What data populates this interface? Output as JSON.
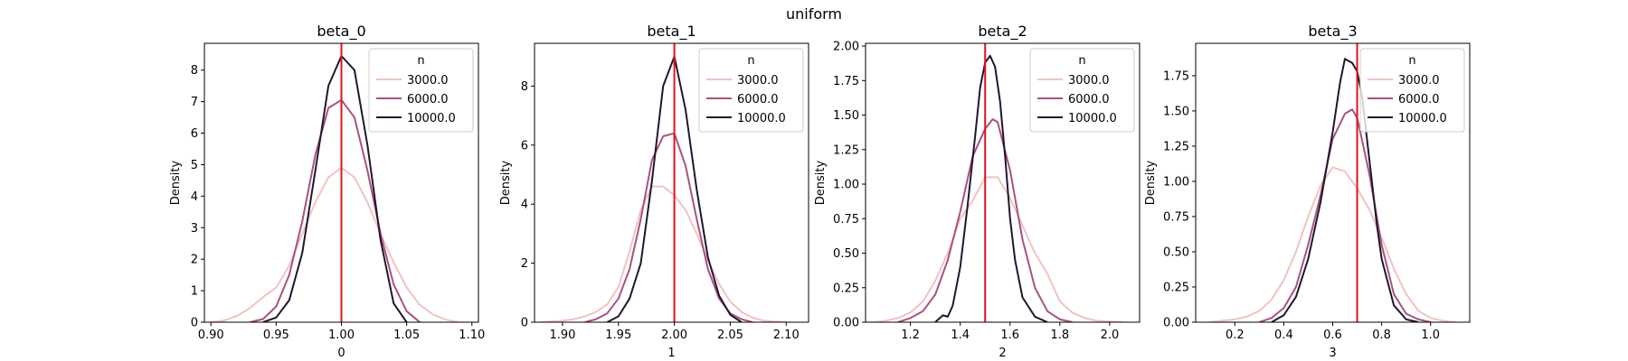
{
  "figure": {
    "suptitle": "uniform"
  },
  "chart_data": [
    {
      "type": "line",
      "title": "beta_0",
      "xlabel": "0",
      "ylabel": "Density",
      "xlim": [
        0.895,
        1.105
      ],
      "ylim": [
        0,
        8.85
      ],
      "xticks": [
        0.9,
        0.95,
        1.0,
        1.05,
        1.1
      ],
      "xtick_labels": [
        "0.90",
        "0.95",
        "1.00",
        "1.05",
        "1.10"
      ],
      "yticks": [
        0,
        1,
        2,
        3,
        4,
        5,
        6,
        7,
        8
      ],
      "ytick_labels": [
        "0",
        "1",
        "2",
        "3",
        "4",
        "5",
        "6",
        "7",
        "8"
      ],
      "true_value": 1.0,
      "legend": {
        "title": "n",
        "position": "upper right"
      },
      "series": [
        {
          "name": "3000.0",
          "color": "#f0c3c0",
          "x": [
            0.9,
            0.91,
            0.92,
            0.93,
            0.94,
            0.95,
            0.96,
            0.97,
            0.98,
            0.99,
            1.0,
            1.01,
            1.02,
            1.03,
            1.04,
            1.05,
            1.06,
            1.07,
            1.08,
            1.09
          ],
          "y": [
            0.0,
            0.05,
            0.2,
            0.45,
            0.8,
            1.1,
            1.8,
            2.8,
            3.8,
            4.6,
            4.9,
            4.6,
            3.8,
            2.8,
            1.9,
            1.1,
            0.55,
            0.25,
            0.08,
            0.0
          ]
        },
        {
          "name": "6000.0",
          "color": "#a8527f",
          "x": [
            0.93,
            0.94,
            0.95,
            0.96,
            0.97,
            0.98,
            0.99,
            1.0,
            1.01,
            1.02,
            1.03,
            1.04,
            1.05,
            1.06
          ],
          "y": [
            0.0,
            0.1,
            0.5,
            1.5,
            3.2,
            5.3,
            6.8,
            7.05,
            6.5,
            4.8,
            2.8,
            1.2,
            0.35,
            0.0
          ]
        },
        {
          "name": "10000.0",
          "color": "#22162e",
          "x": [
            0.94,
            0.95,
            0.96,
            0.97,
            0.98,
            0.99,
            1.0,
            1.01,
            1.02,
            1.03,
            1.04,
            1.05
          ],
          "y": [
            0.0,
            0.15,
            0.7,
            2.2,
            4.8,
            7.5,
            8.45,
            8.0,
            5.6,
            2.6,
            0.6,
            0.0
          ]
        }
      ]
    },
    {
      "type": "line",
      "title": "beta_1",
      "xlabel": "1",
      "ylabel": "Density",
      "xlim": [
        1.875,
        2.12
      ],
      "ylim": [
        0,
        9.45
      ],
      "xticks": [
        1.9,
        1.95,
        2.0,
        2.05,
        2.1
      ],
      "xtick_labels": [
        "1.90",
        "1.95",
        "2.00",
        "2.05",
        "2.10"
      ],
      "yticks": [
        0,
        2,
        4,
        6,
        8
      ],
      "ytick_labels": [
        "0",
        "2",
        "4",
        "6",
        "8"
      ],
      "true_value": 2.0,
      "legend": {
        "title": "n",
        "position": "upper right"
      },
      "series": [
        {
          "name": "3000.0",
          "color": "#f0c3c0",
          "x": [
            1.88,
            1.89,
            1.9,
            1.91,
            1.92,
            1.93,
            1.94,
            1.95,
            1.96,
            1.97,
            1.98,
            1.99,
            2.0,
            2.01,
            2.02,
            2.03,
            2.04,
            2.05,
            2.06,
            2.07,
            2.08,
            2.09,
            2.1
          ],
          "y": [
            0.0,
            0.02,
            0.05,
            0.1,
            0.2,
            0.35,
            0.6,
            1.2,
            2.4,
            3.8,
            4.6,
            4.6,
            4.3,
            3.8,
            3.0,
            2.1,
            1.3,
            0.7,
            0.35,
            0.15,
            0.05,
            0.02,
            0.0
          ]
        },
        {
          "name": "6000.0",
          "color": "#a8527f",
          "x": [
            1.92,
            1.93,
            1.94,
            1.95,
            1.96,
            1.97,
            1.98,
            1.99,
            2.0,
            2.01,
            2.02,
            2.03,
            2.04,
            2.05,
            2.06,
            2.07
          ],
          "y": [
            0.0,
            0.1,
            0.3,
            0.8,
            1.8,
            3.5,
            5.5,
            6.3,
            6.4,
            5.3,
            3.5,
            1.8,
            0.8,
            0.3,
            0.1,
            0.0
          ]
        },
        {
          "name": "10000.0",
          "color": "#22162e",
          "x": [
            1.94,
            1.95,
            1.96,
            1.97,
            1.98,
            1.99,
            2.0,
            2.01,
            2.02,
            2.03,
            2.04,
            2.05,
            2.06
          ],
          "y": [
            0.0,
            0.2,
            0.8,
            2.0,
            4.8,
            8.0,
            9.0,
            7.2,
            4.5,
            2.2,
            0.9,
            0.25,
            0.0
          ]
        }
      ]
    },
    {
      "type": "line",
      "title": "beta_2",
      "xlabel": "2",
      "ylabel": "Density",
      "xlim": [
        1.02,
        2.12
      ],
      "ylim": [
        0,
        2.02
      ],
      "xticks": [
        1.2,
        1.4,
        1.6,
        1.8,
        2.0
      ],
      "xtick_labels": [
        "1.2",
        "1.4",
        "1.6",
        "1.8",
        "2.0"
      ],
      "yticks": [
        0.0,
        0.25,
        0.5,
        0.75,
        1.0,
        1.25,
        1.5,
        1.75,
        2.0
      ],
      "ytick_labels": [
        "0.00",
        "0.25",
        "0.50",
        "0.75",
        "1.00",
        "1.25",
        "1.50",
        "1.75",
        "2.00"
      ],
      "true_value": 1.5,
      "legend": {
        "title": "n",
        "position": "upper right"
      },
      "series": [
        {
          "name": "3000.0",
          "color": "#f0c3c0",
          "x": [
            1.05,
            1.1,
            1.15,
            1.2,
            1.25,
            1.3,
            1.35,
            1.4,
            1.45,
            1.5,
            1.55,
            1.6,
            1.65,
            1.7,
            1.75,
            1.8,
            1.85,
            1.9,
            1.95,
            2.0,
            2.05
          ],
          "y": [
            0.0,
            0.01,
            0.03,
            0.07,
            0.15,
            0.3,
            0.5,
            0.75,
            0.88,
            1.05,
            1.05,
            0.9,
            0.7,
            0.5,
            0.35,
            0.15,
            0.07,
            0.03,
            0.01,
            0.005,
            0.0
          ]
        },
        {
          "name": "6000.0",
          "color": "#a8527f",
          "x": [
            1.15,
            1.2,
            1.25,
            1.3,
            1.35,
            1.4,
            1.45,
            1.5,
            1.53,
            1.55,
            1.6,
            1.65,
            1.7,
            1.75,
            1.8,
            1.85
          ],
          "y": [
            0.0,
            0.03,
            0.08,
            0.2,
            0.45,
            0.8,
            1.2,
            1.4,
            1.47,
            1.45,
            1.1,
            0.6,
            0.25,
            0.08,
            0.02,
            0.0
          ]
        },
        {
          "name": "10000.0",
          "color": "#22162e",
          "x": [
            1.3,
            1.33,
            1.35,
            1.37,
            1.4,
            1.43,
            1.46,
            1.48,
            1.5,
            1.52,
            1.54,
            1.56,
            1.58,
            1.6,
            1.62,
            1.65,
            1.7,
            1.75
          ],
          "y": [
            0.0,
            0.05,
            0.04,
            0.12,
            0.4,
            0.85,
            1.35,
            1.7,
            1.88,
            1.93,
            1.85,
            1.6,
            1.2,
            0.75,
            0.45,
            0.18,
            0.04,
            0.0
          ]
        }
      ]
    },
    {
      "type": "line",
      "title": "beta_3",
      "xlabel": "3",
      "ylabel": "Density",
      "xlim": [
        0.04,
        1.16
      ],
      "ylim": [
        0,
        1.98
      ],
      "xticks": [
        0.2,
        0.4,
        0.6,
        0.8,
        1.0
      ],
      "xtick_labels": [
        "0.2",
        "0.4",
        "0.6",
        "0.8",
        "1.0"
      ],
      "yticks": [
        0.0,
        0.25,
        0.5,
        0.75,
        1.0,
        1.25,
        1.5,
        1.75
      ],
      "ytick_labels": [
        "0.00",
        "0.25",
        "0.50",
        "0.75",
        "1.00",
        "1.25",
        "1.50",
        "1.75"
      ],
      "true_value": 0.7,
      "legend": {
        "title": "n",
        "position": "upper right"
      },
      "series": [
        {
          "name": "3000.0",
          "color": "#f0c3c0",
          "x": [
            0.1,
            0.15,
            0.2,
            0.25,
            0.3,
            0.35,
            0.4,
            0.45,
            0.5,
            0.55,
            0.6,
            0.65,
            0.7,
            0.75,
            0.8,
            0.85,
            0.9,
            0.95,
            1.0,
            1.05,
            1.1
          ],
          "y": [
            0.0,
            0.01,
            0.02,
            0.04,
            0.08,
            0.16,
            0.3,
            0.5,
            0.75,
            0.97,
            1.1,
            1.07,
            0.95,
            0.8,
            0.6,
            0.38,
            0.2,
            0.08,
            0.03,
            0.01,
            0.0
          ]
        },
        {
          "name": "6000.0",
          "color": "#a8527f",
          "x": [
            0.3,
            0.35,
            0.4,
            0.45,
            0.5,
            0.55,
            0.6,
            0.65,
            0.68,
            0.7,
            0.75,
            0.8,
            0.85,
            0.9,
            0.95,
            1.0
          ],
          "y": [
            0.0,
            0.03,
            0.1,
            0.25,
            0.55,
            0.9,
            1.3,
            1.48,
            1.51,
            1.45,
            1.05,
            0.55,
            0.2,
            0.06,
            0.02,
            0.0
          ]
        },
        {
          "name": "10000.0",
          "color": "#22162e",
          "x": [
            0.35,
            0.4,
            0.45,
            0.5,
            0.55,
            0.6,
            0.63,
            0.65,
            0.68,
            0.7,
            0.72,
            0.75,
            0.78,
            0.8,
            0.85,
            0.9,
            0.95
          ],
          "y": [
            0.0,
            0.05,
            0.18,
            0.45,
            0.85,
            1.35,
            1.7,
            1.87,
            1.84,
            1.78,
            1.6,
            1.15,
            0.7,
            0.45,
            0.12,
            0.02,
            0.0
          ]
        }
      ]
    }
  ]
}
